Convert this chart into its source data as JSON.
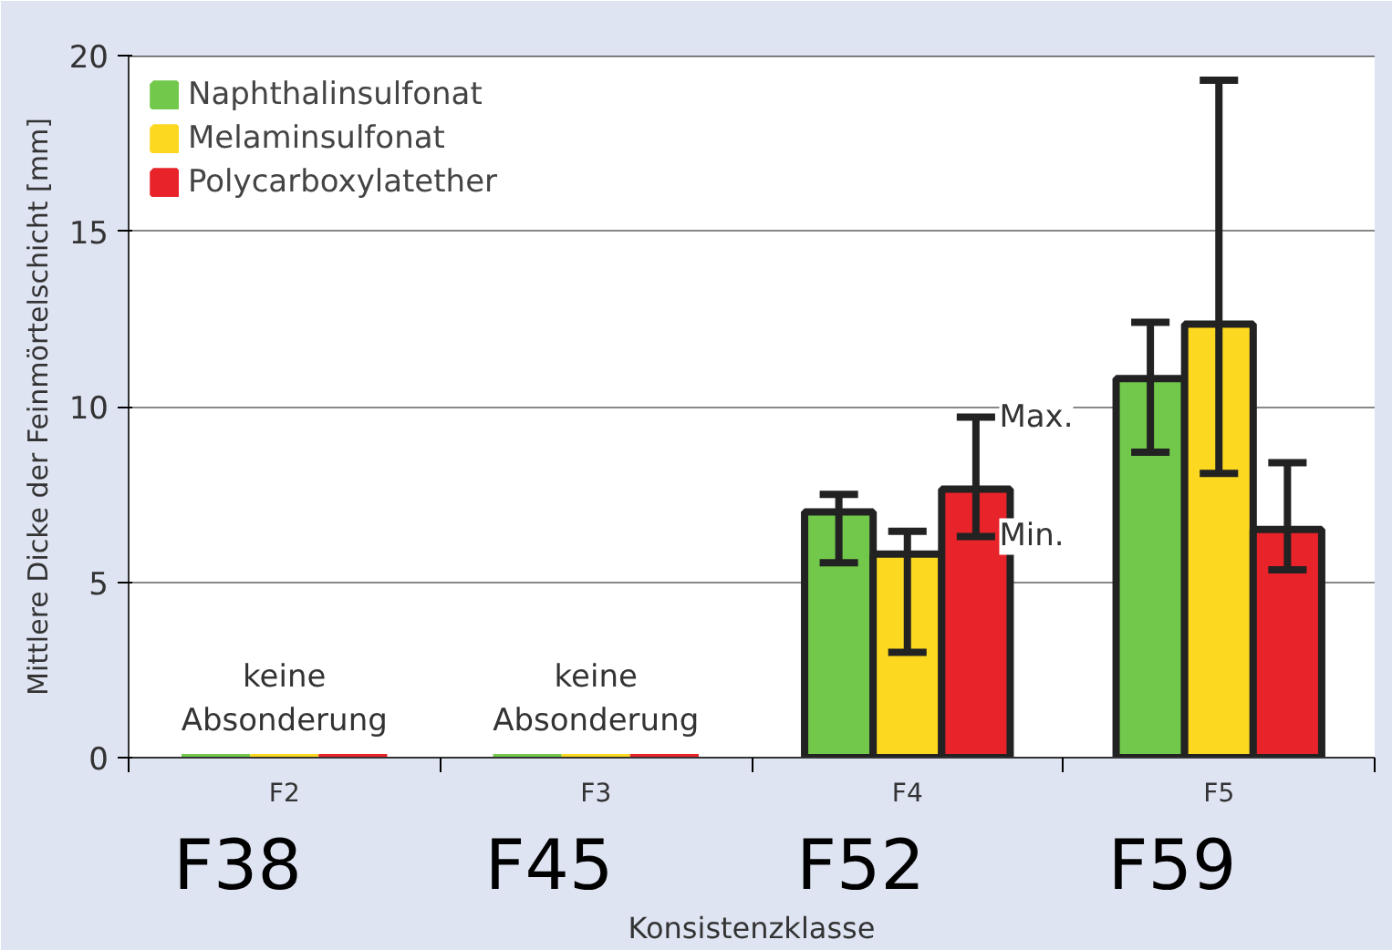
{
  "chart_data": {
    "type": "bar",
    "ylabel": "Mittlere Dicke der Feinmörtelschicht [mm]",
    "xlabel": "Konsistenzklasse",
    "categories": [
      "F2",
      "F3",
      "F4",
      "F5"
    ],
    "series": [
      {
        "name": "Naphthalinsulfonat",
        "color": "#72c84a",
        "values": [
          0,
          0,
          7.0,
          10.8
        ],
        "errors": [
          null,
          null,
          [
            5.55,
            7.5
          ],
          [
            8.7,
            12.4
          ]
        ]
      },
      {
        "name": "Melaminsulfonat",
        "color": "#fdd820",
        "values": [
          0,
          0,
          5.8,
          12.35
        ],
        "errors": [
          null,
          null,
          [
            3.0,
            6.45
          ],
          [
            8.1,
            19.3
          ]
        ]
      },
      {
        "name": "Polycarboxylatether",
        "color": "#e8232a",
        "values": [
          0,
          0,
          7.65,
          6.5
        ],
        "errors": [
          null,
          null,
          [
            6.3,
            9.7
          ],
          [
            5.35,
            8.4
          ]
        ]
      }
    ],
    "ylim": [
      0,
      20
    ],
    "yticks": [
      0,
      5,
      10,
      15,
      20
    ],
    "grid": "y",
    "legend": "top left",
    "annotations": [
      {
        "text": "keine\nAbsonderung",
        "x": "F2",
        "y": 0
      },
      {
        "text": "keine\nAbsonderung",
        "x": "F3",
        "y": 0
      },
      "Max.",
      "Min.",
      "F38",
      "F45",
      "F52",
      "F59"
    ]
  }
}
